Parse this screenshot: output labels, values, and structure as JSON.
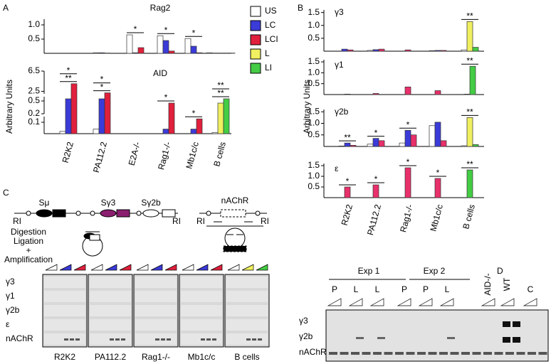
{
  "panel_labels": [
    "A",
    "B",
    "C",
    "D"
  ],
  "chart_data": [
    {
      "type": "bar",
      "y_label": "Arbitrary Units",
      "categories": [
        "R2K2",
        "PA112.2",
        "E2A-/-",
        "Rag1-/-",
        "Mb1c/c",
        "B cells"
      ],
      "series": [
        {
          "name": "US",
          "color": "#ffffff"
        },
        {
          "name": "LC",
          "color": "#3b3bd8"
        },
        {
          "name": "LCI",
          "color": "#e0203c"
        },
        {
          "name": "L",
          "color": "#f0f060"
        },
        {
          "name": "LI",
          "color": "#44cc44"
        }
      ],
      "legend": "right",
      "subplots": [
        {
          "title": "Rag2",
          "ylim": [
            0,
            1.2
          ],
          "yticks": [
            0.5,
            {
              "value": 1,
              "label": "1.0"
            }
          ],
          "values": [
            [
              0,
              0.02,
              0.65,
              0.62,
              0.52,
              0.02
            ],
            [
              0,
              0.02,
              0.02,
              0.45,
              0.25,
              0.01
            ],
            [
              0,
              0.01,
              0.2,
              0.08,
              0.02,
              0.01
            ],
            [
              null,
              null,
              null,
              null,
              null,
              0.01
            ],
            [
              null,
              null,
              null,
              null,
              null,
              0.01
            ]
          ],
          "significance": [
            {
              "category": "E2A-/-",
              "label": "*"
            },
            {
              "category": "Rag1-/-",
              "label": "*"
            },
            {
              "category": "Mb1c/c",
              "label": "*"
            }
          ]
        },
        {
          "title": "AID",
          "ylim": [
            0,
            6.5
          ],
          "axis_breaks": [
            [
              0,
              0.15
            ],
            [
              0.2,
              0.6
            ],
            [
              2,
              6.5
            ]
          ],
          "yticks": [
            0.1,
            0.2,
            0.5,
            2.5,
            6.5
          ],
          "values": [
            [
              0.02,
              0.04,
              0,
              0,
              0,
              0.01
            ],
            [
              0.55,
              0.55,
              0,
              0.04,
              0.04,
              null
            ],
            [
              4.0,
              2.2,
              0,
              0.45,
              0.13,
              null
            ],
            [
              null,
              null,
              null,
              null,
              null,
              0.45
            ],
            [
              null,
              null,
              null,
              null,
              null,
              0.55
            ]
          ],
          "significance": [
            {
              "category": "R2K2",
              "label": "**"
            },
            {
              "category": "R2K2",
              "label": "*"
            },
            {
              "category": "PA112.2",
              "label": "*"
            },
            {
              "category": "PA112.2",
              "label": "*"
            },
            {
              "category": "Rag1-/-",
              "label": "*"
            },
            {
              "category": "Mb1c/c",
              "label": "*"
            },
            {
              "category": "B cells",
              "label": "**"
            },
            {
              "category": "B cells",
              "label": "**"
            }
          ]
        }
      ]
    },
    {
      "type": "bar",
      "y_label": "Arbitrary Units",
      "categories": [
        "R2K2",
        "PA112.2",
        "Rag1-/-",
        "Mb1c/c",
        "B cells"
      ],
      "series": [
        {
          "color": "#ffffff"
        },
        {
          "color": "#3b3bd8"
        },
        {
          "color": "#e8306a"
        },
        {
          "color": "#f0f060"
        },
        {
          "color": "#44cc44"
        }
      ],
      "subplots": [
        {
          "title": "γ3",
          "ylim": [
            0,
            1.6
          ],
          "yticks": [
            0.5,
            {
              "value": 1,
              "label": "1.0"
            },
            1.5
          ],
          "values": [
            [
              null,
              0.03,
              null,
              0.02,
              0.05
            ],
            [
              0.08,
              0.06,
              null,
              0.03,
              null
            ],
            [
              0.05,
              0.08,
              0.05,
              0.03,
              null
            ],
            [
              null,
              null,
              null,
              null,
              1.15
            ],
            [
              null,
              null,
              null,
              null,
              0.15
            ]
          ],
          "significance": [
            {
              "category": "B cells",
              "label": "**"
            }
          ]
        },
        {
          "title": "γ1",
          "ylim": [
            0,
            1.6
          ],
          "yticks": [
            0.5,
            {
              "value": 1,
              "label": "1.0"
            },
            1.5
          ],
          "values": [
            [
              null,
              null,
              null,
              null,
              null
            ],
            [
              null,
              null,
              null,
              null,
              null
            ],
            [
              0.02,
              0.05,
              0.35,
              0.18,
              null
            ],
            [
              null,
              null,
              null,
              null,
              0.02
            ],
            [
              null,
              null,
              null,
              null,
              1.3
            ]
          ],
          "significance": [
            {
              "category": "B cells",
              "label": "**"
            }
          ]
        },
        {
          "title": "γ2b",
          "ylim": [
            0,
            1.6
          ],
          "yticks": [
            0.5,
            {
              "value": 1,
              "label": "1.0"
            },
            1.5
          ],
          "values": [
            [
              0.02,
              0.1,
              0.15,
              0.9,
              0.03
            ],
            [
              0.15,
              0.35,
              0.7,
              1.05,
              null
            ],
            [
              0.05,
              0.25,
              0.5,
              0.25,
              null
            ],
            [
              null,
              null,
              null,
              null,
              1.25
            ],
            [
              null,
              null,
              null,
              null,
              0.08
            ]
          ],
          "significance": [
            {
              "category": "R2K2",
              "label": "**"
            },
            {
              "category": "PA112.2",
              "label": "*"
            },
            {
              "category": "Rag1-/-",
              "label": "*"
            },
            {
              "category": "B cells",
              "label": "**"
            }
          ]
        },
        {
          "title": "ε",
          "ylim": [
            0,
            1.6
          ],
          "yticks": [
            0.5,
            {
              "value": 1,
              "label": "1.0"
            },
            1.5
          ],
          "values": [
            [
              null,
              null,
              null,
              null,
              null
            ],
            [
              null,
              null,
              null,
              null,
              null
            ],
            [
              0.5,
              0.6,
              1.4,
              0.9,
              null
            ],
            [
              null,
              null,
              null,
              null,
              null
            ],
            [
              null,
              null,
              null,
              null,
              1.3
            ]
          ],
          "significance": [
            {
              "category": "R2K2",
              "label": "*"
            },
            {
              "category": "PA112.2",
              "label": "*"
            },
            {
              "category": "Rag1-/-",
              "label": "*"
            },
            {
              "category": "Mb1c/c",
              "label": "*"
            },
            {
              "category": "B cells",
              "label": "**"
            }
          ]
        }
      ]
    }
  ],
  "diagram": {
    "regions": [
      "Sμ",
      "Sγ3",
      "Sγ2b",
      "nAChR"
    ],
    "sites": [
      "RI",
      "RI",
      "RI",
      "RI"
    ],
    "steps": [
      "Digestion",
      "Ligation",
      "+",
      "Amplification"
    ]
  },
  "gel_c": {
    "rows": [
      "γ3",
      "γ1",
      "γ2b",
      "ε",
      "nAChR"
    ],
    "groups": [
      "R2K2",
      "PA112.2",
      "Rag1-/-",
      "Mb1c/c",
      "B cells"
    ]
  },
  "gel_d": {
    "groups": [
      "Exp 1",
      "Exp 2"
    ],
    "lanes": [
      "P",
      "L",
      "L",
      "P",
      "P",
      "L",
      "AID-/-",
      "WT",
      "C"
    ],
    "rows": [
      "γ3",
      "γ2b",
      "nAChR"
    ]
  }
}
